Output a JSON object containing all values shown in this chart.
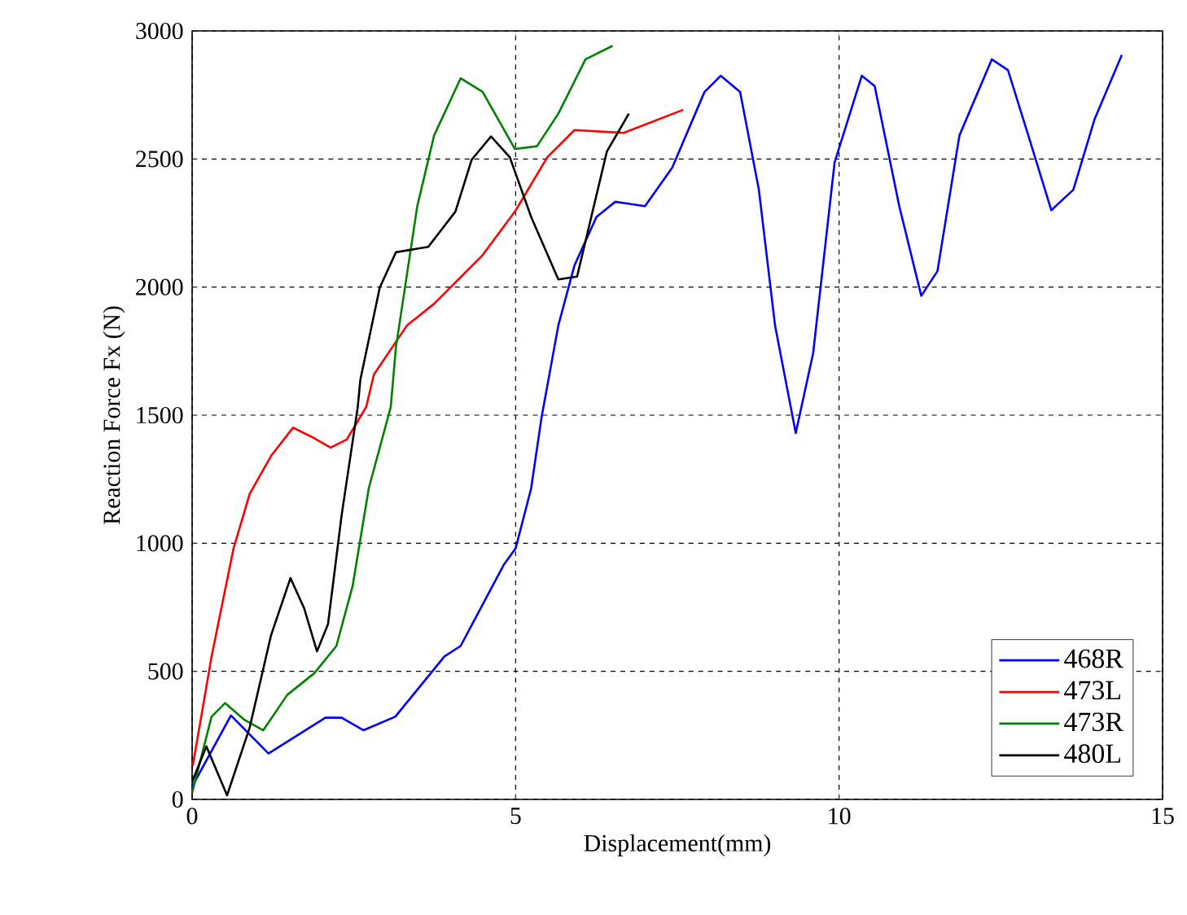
{
  "chart_data": {
    "type": "line",
    "xlabel": "Displacement(mm)",
    "ylabel": "Reaction Force Fx (N)",
    "xlim": [
      0,
      15
    ],
    "ylim": [
      0,
      3000
    ],
    "xticks": [
      0,
      5,
      10,
      15
    ],
    "yticks": [
      0,
      500,
      1000,
      1500,
      2000,
      2500,
      3000
    ],
    "grid": true,
    "legend": "bottom right",
    "marker": "none",
    "line_style": "solid",
    "series": [
      {
        "name": "468R",
        "color": "#0000ff",
        "x": [
          0.0,
          0.6,
          1.18,
          2.06,
          2.31,
          2.65,
          3.14,
          3.9,
          4.15,
          4.82,
          5.0,
          5.24,
          5.4,
          5.66,
          5.91,
          6.25,
          6.54,
          7.0,
          7.42,
          7.92,
          8.17,
          8.47,
          8.76,
          9.01,
          9.33,
          9.6,
          9.93,
          10.35,
          10.55,
          10.93,
          11.27,
          11.52,
          11.86,
          12.36,
          12.61,
          12.95,
          13.28,
          13.62,
          13.95,
          14.37
        ],
        "values": [
          50,
          328,
          179,
          319,
          319,
          270,
          323,
          558,
          599,
          917,
          980,
          1214,
          1490,
          1850,
          2085,
          2274,
          2333,
          2316,
          2466,
          2762,
          2825,
          2762,
          2380,
          1850,
          1430,
          1744,
          2486,
          2825,
          2785,
          2316,
          1966,
          2062,
          2592,
          2889,
          2847,
          2571,
          2300,
          2380,
          2656,
          2906
        ]
      },
      {
        "name": "473L",
        "color": "#ff0000",
        "x": [
          0.01,
          0.3,
          0.64,
          0.89,
          1.22,
          1.56,
          1.85,
          2.14,
          2.39,
          2.69,
          2.81,
          3.32,
          3.74,
          4.49,
          4.99,
          5.49,
          5.91,
          6.67,
          7.59
        ],
        "values": [
          132,
          557,
          980,
          1193,
          1341,
          1451,
          1415,
          1373,
          1405,
          1532,
          1659,
          1850,
          1935,
          2125,
          2295,
          2507,
          2613,
          2602,
          2692
        ]
      },
      {
        "name": "473R",
        "color": "#008000",
        "x": [
          0.0,
          0.3,
          0.51,
          0.8,
          1.1,
          1.47,
          1.89,
          2.23,
          2.48,
          2.73,
          3.07,
          3.15,
          3.48,
          3.74,
          4.15,
          4.49,
          4.99,
          5.33,
          5.66,
          6.08,
          6.5
        ],
        "values": [
          26,
          323,
          376,
          312,
          270,
          408,
          493,
          599,
          832,
          1214,
          1532,
          1765,
          2316,
          2592,
          2815,
          2762,
          2539,
          2550,
          2677,
          2889,
          2942
        ]
      },
      {
        "name": "480L",
        "color": "#000000",
        "x": [
          0.0,
          0.22,
          0.54,
          0.89,
          1.22,
          1.52,
          1.73,
          1.93,
          2.1,
          2.31,
          2.56,
          2.6,
          2.9,
          3.15,
          3.65,
          4.07,
          4.32,
          4.62,
          4.91,
          5.24,
          5.66,
          5.95,
          6.41,
          6.75
        ],
        "values": [
          69,
          207,
          16,
          281,
          641,
          864,
          747,
          578,
          684,
          1108,
          1532,
          1638,
          1998,
          2136,
          2157,
          2295,
          2497,
          2588,
          2507,
          2274,
          2030,
          2041,
          2529,
          2677
        ]
      }
    ]
  }
}
